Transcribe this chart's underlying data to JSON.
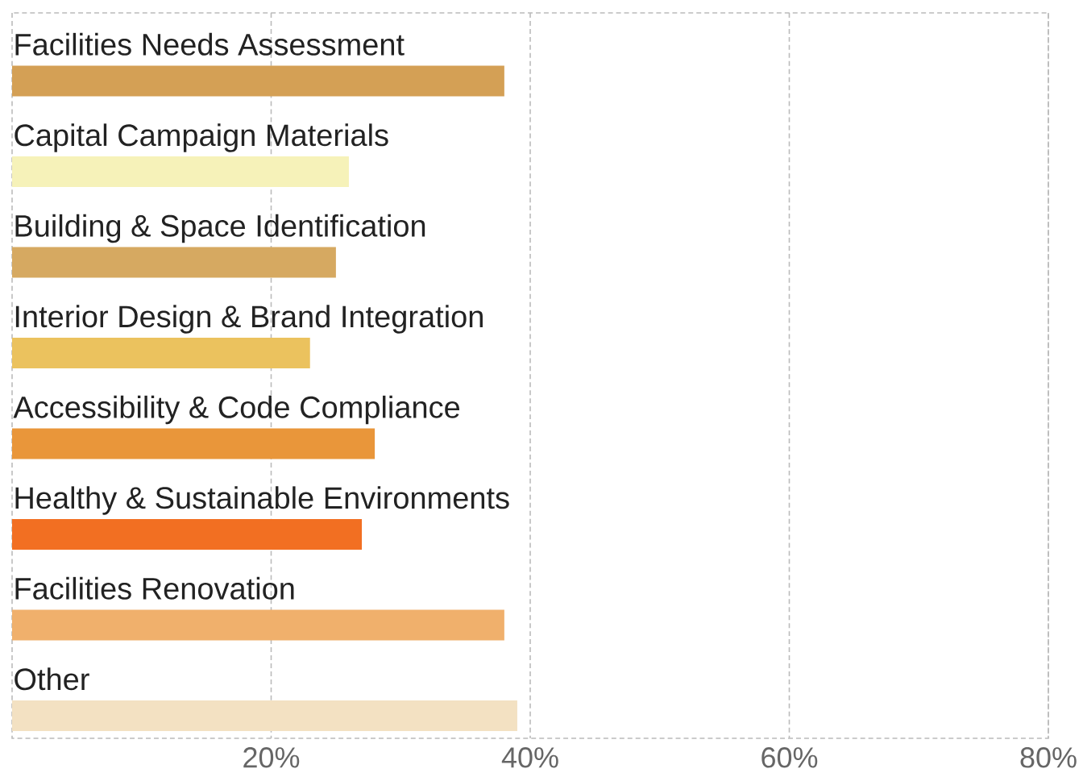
{
  "chart_data": {
    "type": "bar",
    "orientation": "horizontal",
    "categories": [
      "Facilities Needs Assessment",
      "Capital Campaign Materials",
      "Building & Space Identification",
      "Interior Design & Brand Integration",
      "Accessibility & Code Compliance",
      "Healthy & Sustainable Environments",
      "Facilities Renovation",
      "Other"
    ],
    "values": [
      38,
      26,
      25,
      23,
      28,
      27,
      38,
      39
    ],
    "colors": [
      "#d4a055",
      "#f6f2b9",
      "#d6a961",
      "#ebc25e",
      "#e9963a",
      "#f26f22",
      "#f0b06c",
      "#f3e1c2"
    ],
    "xlim": [
      0,
      80
    ],
    "xticks": [
      {
        "value": 20,
        "label": "20%"
      },
      {
        "value": 40,
        "label": "40%"
      },
      {
        "value": 60,
        "label": "60%"
      },
      {
        "value": 80,
        "label": "80%"
      }
    ],
    "grid": "x"
  }
}
